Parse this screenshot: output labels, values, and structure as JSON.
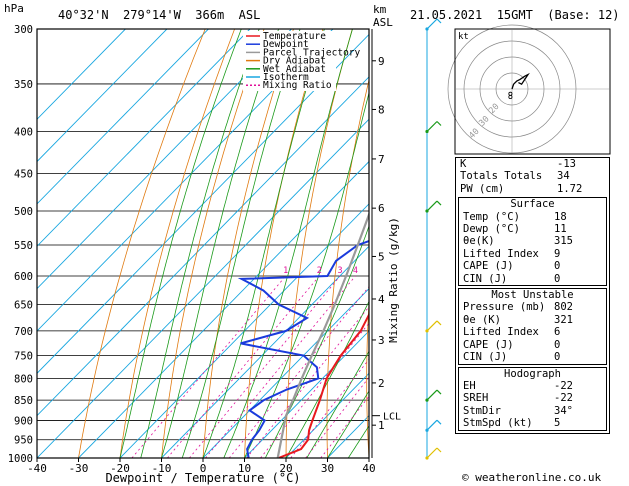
{
  "header": {
    "pressure_unit": "hPa",
    "location": "40°32'N  279°14'W  366m  ASL",
    "height_unit_km": "km",
    "height_unit_asl": "ASL",
    "datetime": "21.05.2021  15GMT  (Base: 12)"
  },
  "chart_data": [
    {
      "type": "line",
      "subtype": "skew-T log-P",
      "xlabel": "Dewpoint / Temperature (°C)",
      "ylabel_right": "Mixing Ratio (g/kg)",
      "x_ticks": [
        -40,
        -30,
        -20,
        -10,
        0,
        10,
        20,
        30,
        40
      ],
      "y_ticks": [
        300,
        350,
        400,
        450,
        500,
        550,
        600,
        650,
        700,
        750,
        800,
        850,
        900,
        950,
        1000
      ],
      "y_scale": "log",
      "height_ticks_km": [
        {
          "label": "9",
          "p": 328
        },
        {
          "label": "8",
          "p": 376
        },
        {
          "label": "7",
          "p": 432
        },
        {
          "label": "6",
          "p": 496
        },
        {
          "label": "5",
          "p": 568
        },
        {
          "label": "4",
          "p": 640
        },
        {
          "label": "3",
          "p": 718
        },
        {
          "label": "2",
          "p": 810
        },
        {
          "label": "1",
          "p": 912
        }
      ],
      "lcl_label": "LCL",
      "lcl_p": 888,
      "mixing_ratio_labels": [
        "1",
        "2",
        "3",
        "4",
        "6",
        "8",
        "10",
        "16",
        "20",
        "25"
      ],
      "mixing_ratio_values": [
        1,
        2,
        3,
        4,
        6,
        8,
        10,
        16,
        20,
        25
      ],
      "legend": [
        "Temperature",
        "Dewpoint",
        "Parcel Trajectory",
        "Dry Adiabat",
        "Wet Adiabat",
        "Isotherm",
        "Mixing Ratio"
      ],
      "legend_colors": [
        "#e8191e",
        "#1a3bdc",
        "#9a9a9a",
        "#e07a10",
        "#1a9a1a",
        "#19a7e0",
        "#e0109a"
      ],
      "series": [
        {
          "name": "Temperature",
          "points": [
            [
              1000,
              18.2
            ],
            [
              975,
              21.5
            ],
            [
              950,
              21
            ],
            [
              925,
              19
            ],
            [
              900,
              17.5
            ],
            [
              850,
              14.5
            ],
            [
              800,
              11
            ],
            [
              775,
              10
            ],
            [
              750,
              9
            ],
            [
              700,
              8
            ],
            [
              650,
              5
            ],
            [
              600,
              2
            ],
            [
              550,
              -1.5
            ],
            [
              500,
              -5.5
            ],
            [
              450,
              -10.5
            ],
            [
              400,
              -16.5
            ],
            [
              350,
              -24
            ],
            [
              300,
              -32
            ]
          ]
        },
        {
          "name": "Dewpoint",
          "points": [
            [
              1000,
              11
            ],
            [
              975,
              8.5
            ],
            [
              950,
              7.5
            ],
            [
              925,
              7
            ],
            [
              900,
              6
            ],
            [
              875,
              0
            ],
            [
              850,
              1
            ],
            [
              825,
              4
            ],
            [
              800,
              9
            ],
            [
              775,
              6
            ],
            [
              750,
              0
            ],
            [
              725,
              -18
            ],
            [
              700,
              -10
            ],
            [
              675,
              -8
            ],
            [
              650,
              -18
            ],
            [
              625,
              -25
            ],
            [
              605,
              -33
            ],
            [
              600,
              -13
            ],
            [
              575,
              -14.5
            ],
            [
              550,
              -13
            ],
            [
              540,
              -10
            ],
            [
              525,
              -13
            ],
            [
              500,
              -13
            ],
            [
              450,
              -17
            ],
            [
              400,
              -19
            ],
            [
              375,
              -20
            ],
            [
              350,
              -23
            ],
            [
              325,
              -27
            ],
            [
              300,
              -30
            ]
          ]
        },
        {
          "name": "Parcel Trajectory",
          "points": [
            [
              1000,
              18
            ],
            [
              888,
              10
            ],
            [
              850,
              8
            ],
            [
              800,
              5
            ],
            [
              750,
              2
            ],
            [
              700,
              -1
            ],
            [
              650,
              -4.5
            ],
            [
              600,
              -8.5
            ],
            [
              550,
              -13
            ],
            [
              500,
              -18
            ],
            [
              450,
              -23.5
            ],
            [
              400,
              -30
            ],
            [
              350,
              -37.5
            ],
            [
              300,
              -46
            ]
          ]
        }
      ],
      "wind_barbs": [
        {
          "p": 300,
          "color": "#19a7e0"
        },
        {
          "p": 400,
          "color": "#1a9a1a"
        },
        {
          "p": 500,
          "color": "#1a9a1a"
        },
        {
          "p": 700,
          "color": "#e0c000"
        },
        {
          "p": 850,
          "color": "#1a9a1a"
        },
        {
          "p": 925,
          "color": "#19a7e0"
        },
        {
          "p": 1000,
          "color": "#e0c000"
        }
      ]
    },
    {
      "type": "scatter",
      "subtype": "hodograph",
      "unit_label": "kt",
      "ring_labels": [
        "20",
        "30",
        "40"
      ],
      "ring_values_kt": [
        10,
        20,
        30,
        40
      ],
      "trace_kt": [
        [
          0,
          0
        ],
        [
          1,
          3
        ],
        [
          3,
          5
        ],
        [
          5,
          6
        ],
        [
          8,
          8
        ],
        [
          10,
          9
        ],
        [
          6,
          3
        ],
        [
          4,
          4
        ]
      ],
      "storm_motion_kt": [
        -1,
        -3
      ],
      "storm_motion_2_kt": [
        -1,
        -5
      ]
    }
  ],
  "indices": [
    {
      "label": "K",
      "value": "-13"
    },
    {
      "label": "Totals Totals",
      "value": "34"
    },
    {
      "label": "PW (cm)",
      "value": "1.72"
    }
  ],
  "surface": {
    "title": "Surface",
    "rows": [
      {
        "label": "Temp (°C)",
        "value": "18"
      },
      {
        "label": "Dewp (°C)",
        "value": "11"
      },
      {
        "label": "θe(K)",
        "value": "315"
      },
      {
        "label": "Lifted Index",
        "value": "9"
      },
      {
        "label": "CAPE (J)",
        "value": "0"
      },
      {
        "label": "CIN (J)",
        "value": "0"
      }
    ]
  },
  "most_unstable": {
    "title": "Most Unstable",
    "rows": [
      {
        "label": "Pressure (mb)",
        "value": "802"
      },
      {
        "label": "θe (K)",
        "value": "321"
      },
      {
        "label": "Lifted Index",
        "value": "6"
      },
      {
        "label": "CAPE (J)",
        "value": "0"
      },
      {
        "label": "CIN (J)",
        "value": "0"
      }
    ]
  },
  "hodograph_table": {
    "title": "Hodograph",
    "rows": [
      {
        "label": "EH",
        "value": "-22"
      },
      {
        "label": "SREH",
        "value": "-22"
      },
      {
        "label": "StmDir",
        "value": "34°"
      },
      {
        "label": "StmSpd (kt)",
        "value": "5"
      }
    ]
  },
  "footer": {
    "copyright": "© weatheronline.co.uk"
  }
}
